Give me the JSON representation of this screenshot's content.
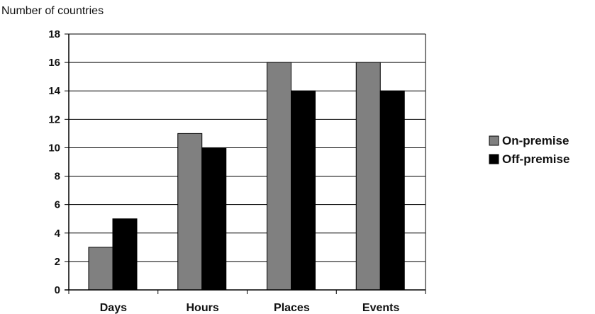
{
  "chart_data": {
    "type": "bar",
    "title": "",
    "xlabel": "",
    "ylabel": "Number of countries",
    "categories": [
      "Days",
      "Hours",
      "Places",
      "Events"
    ],
    "series": [
      {
        "name": "On-premise",
        "values": [
          3,
          11,
          16,
          16
        ],
        "color": "#808080"
      },
      {
        "name": "Off-premise",
        "values": [
          5,
          10,
          14,
          14
        ],
        "color": "#000000"
      }
    ],
    "ylim": [
      0,
      18
    ],
    "yticks": [
      0,
      2,
      4,
      6,
      8,
      10,
      12,
      14,
      16,
      18
    ],
    "grid": true,
    "legend_position": "right"
  }
}
